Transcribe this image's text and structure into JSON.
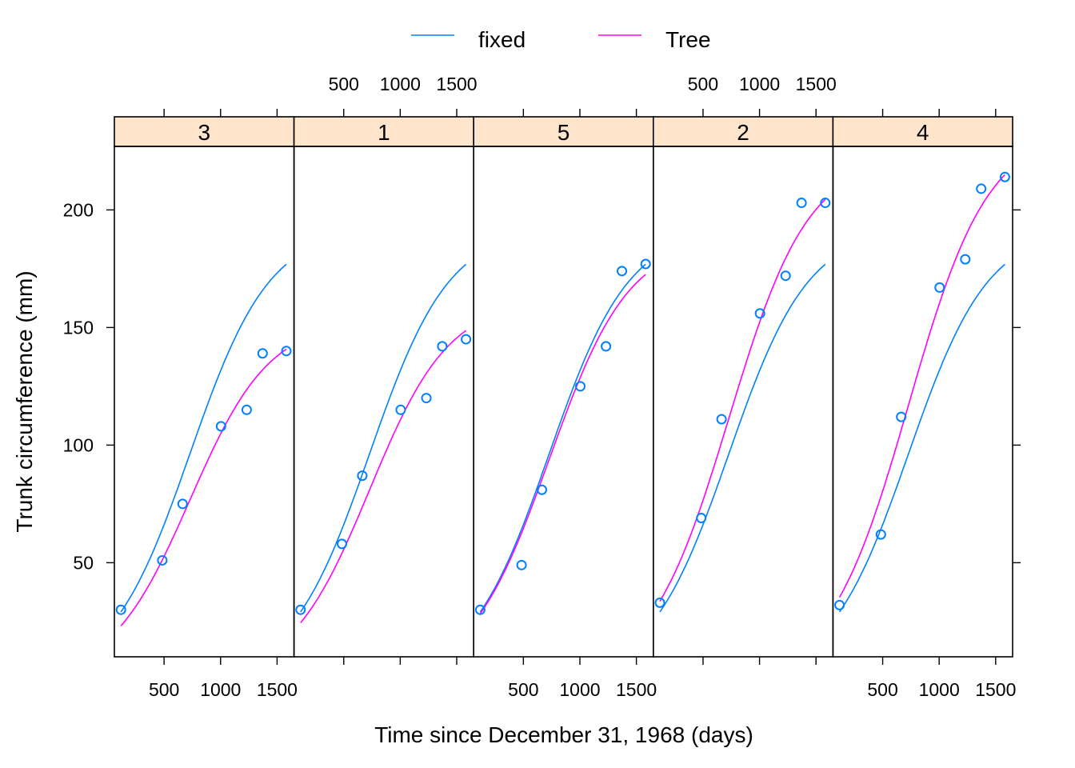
{
  "chart_data": {
    "type": "scatter",
    "xlabel": "Time since December 31, 1968 (days)",
    "ylabel": "Trunk circumference (mm)",
    "xlim": [
      60,
      1650
    ],
    "ylim": [
      10,
      227
    ],
    "xticks": [
      500,
      1000,
      1500
    ],
    "xtick_labels": [
      "500",
      "1000",
      "1500"
    ],
    "yticks": [
      50,
      100,
      150,
      200
    ],
    "ytick_labels": [
      "50",
      "100",
      "150",
      "200"
    ],
    "legend_position": "top",
    "legend": [
      {
        "label": "fixed",
        "color": "#0080ff"
      },
      {
        "label": "Tree",
        "color": "#ff00ff"
      }
    ],
    "x": [
      118,
      484,
      664,
      1004,
      1231,
      1372,
      1582
    ],
    "fixed_fit": {
      "asym": 192.7,
      "xmid": 728.8,
      "scal": 353.5
    },
    "panels": [
      {
        "label": "3",
        "points": [
          30,
          51,
          75,
          108,
          115,
          139,
          140
        ],
        "tree_fit": {
          "asym": 153.4,
          "xmid": 728.8,
          "scal": 353.5
        }
      },
      {
        "label": "1",
        "points": [
          30,
          58,
          87,
          115,
          120,
          142,
          145
        ],
        "tree_fit": {
          "asym": 162.0,
          "xmid": 728.8,
          "scal": 353.5
        }
      },
      {
        "label": "5",
        "points": [
          30,
          49,
          81,
          125,
          142,
          174,
          177
        ],
        "tree_fit": {
          "asym": 188.0,
          "xmid": 728.8,
          "scal": 353.5
        }
      },
      {
        "label": "2",
        "points": [
          33,
          69,
          111,
          156,
          172,
          203,
          203
        ],
        "tree_fit": {
          "asym": 222.8,
          "xmid": 728.8,
          "scal": 353.5
        }
      },
      {
        "label": "4",
        "points": [
          32,
          62,
          112,
          167,
          179,
          209,
          214
        ],
        "tree_fit": {
          "asym": 234.2,
          "xmid": 728.8,
          "scal": 353.5
        }
      }
    ]
  }
}
